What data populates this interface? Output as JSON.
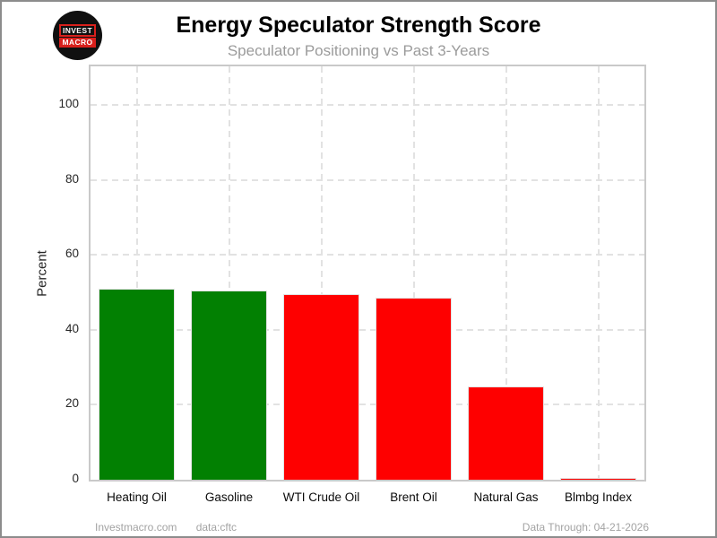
{
  "header": {
    "logo_line1": "INVEST",
    "logo_line2": "MACRO"
  },
  "chart_data": {
    "type": "bar",
    "title": "Energy Speculator Strength Score",
    "subtitle": "Speculator Positioning vs Past 3-Years",
    "categories": [
      "Heating Oil",
      "Gasoline",
      "WTI Crude Oil",
      "Brent Oil",
      "Natural Gas",
      "Blmbg Index"
    ],
    "values": [
      51,
      50.5,
      49.5,
      48.5,
      25,
      0.6
    ],
    "bar_colors": [
      "#028002",
      "#028002",
      "#fe0000",
      "#fe0000",
      "#fe0000",
      "#fe0000"
    ],
    "xlabel": "",
    "ylabel": "Percent",
    "ylim": [
      0,
      110
    ],
    "yticks": [
      0,
      20,
      40,
      60,
      80,
      100
    ],
    "grid": "dashed, horizontal at yticks and vertical at category centers",
    "legend": "none"
  },
  "footer": {
    "site": "Investmacro.com",
    "source": "data:cftc",
    "data_through": "Data Through: 04-21-2026"
  },
  "colors": {
    "positive_bar": "#028002",
    "negative_bar": "#fe0000",
    "grid_line": "#e2e2e2",
    "plot_border": "#c9c9c9",
    "logo_red": "#d8201c",
    "subtitle_text": "#9b9b9b",
    "footer_text": "#a3a3a3"
  }
}
